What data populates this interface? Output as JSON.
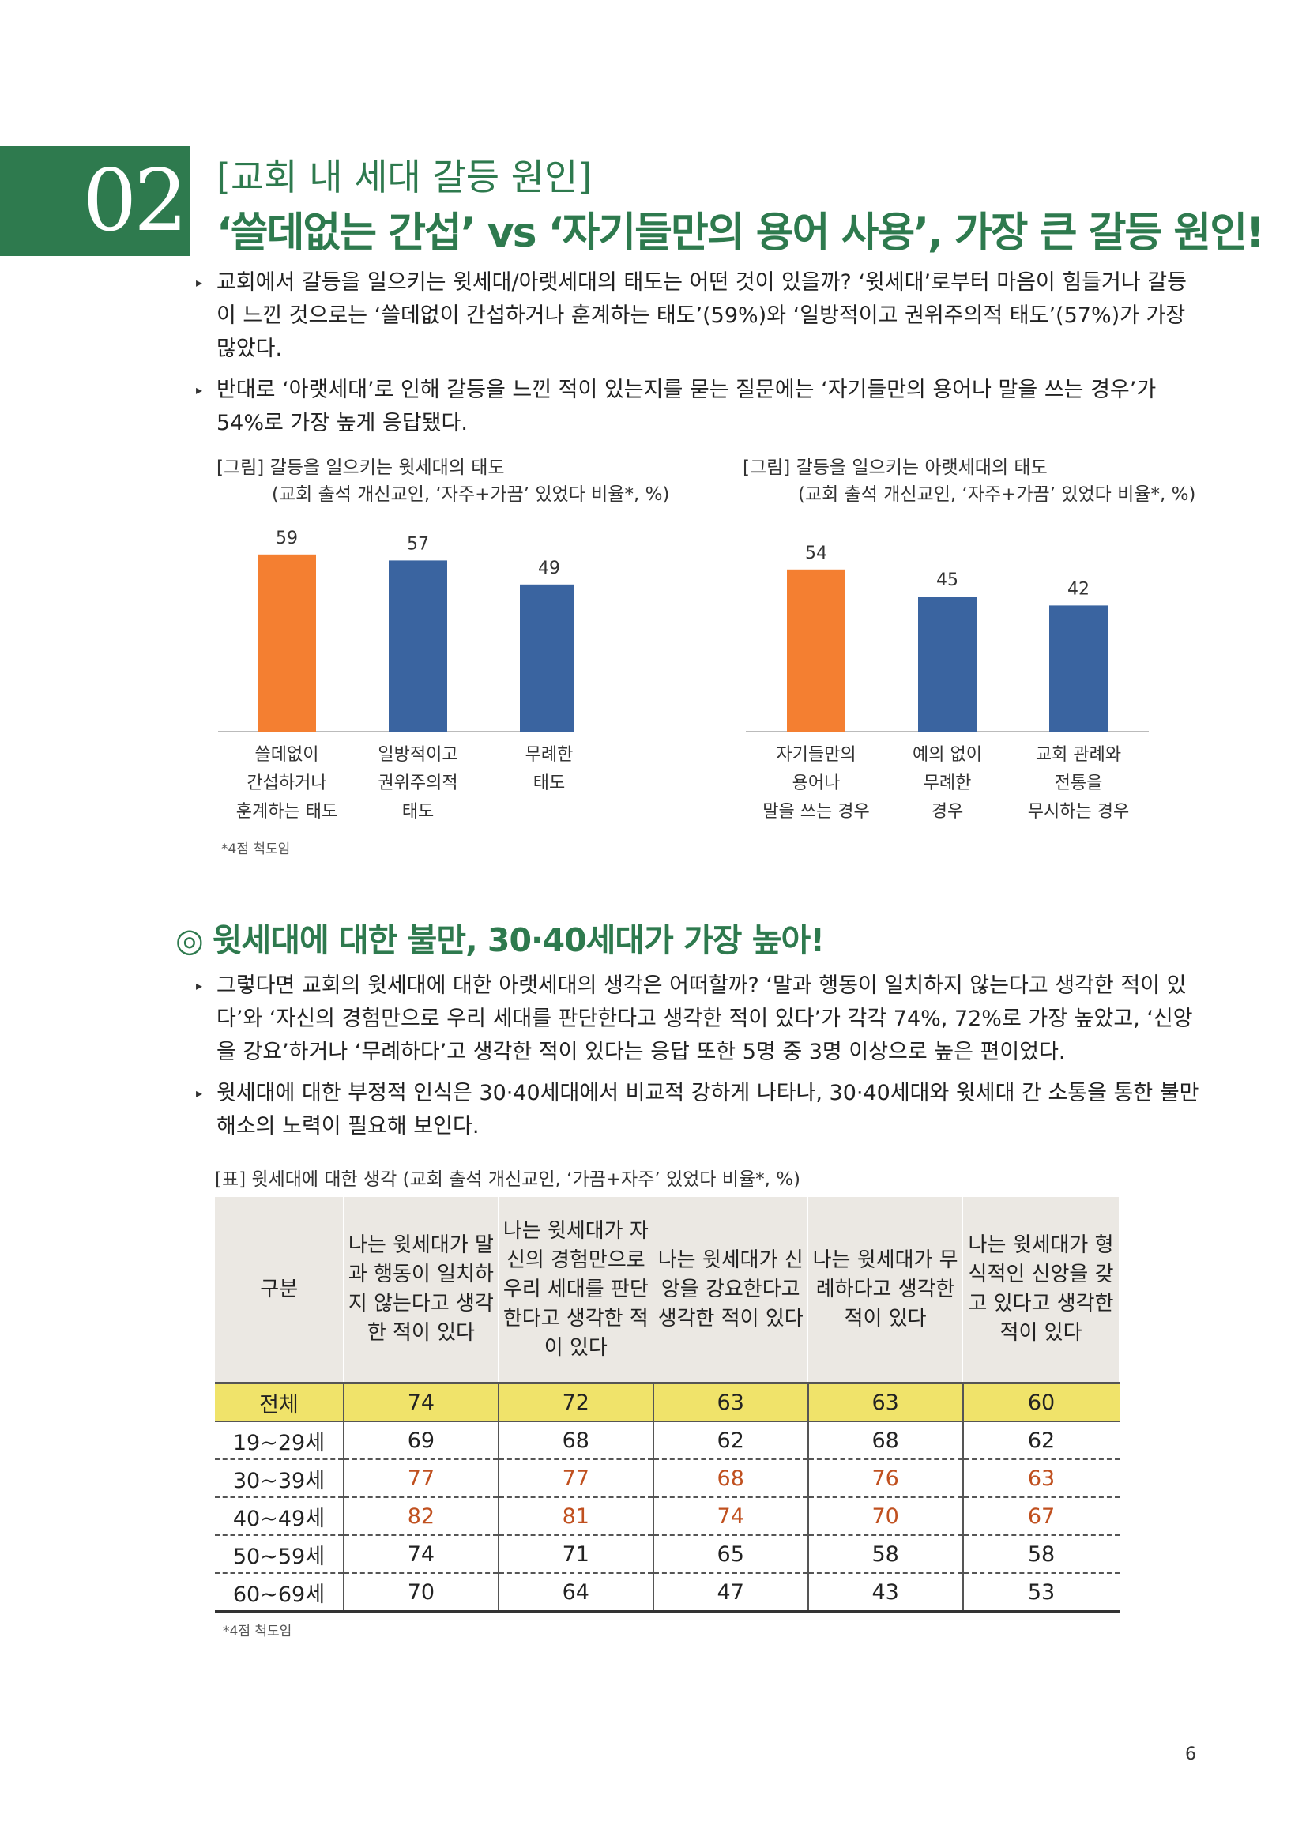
{
  "header": {
    "number": "02",
    "subtitle": "[교회 내 세대 갈등 원인]",
    "title": "‘쓸데없는 간섭’ vs ‘자기들만의 용어 사용’, 가장 큰 갈등 원인!"
  },
  "section1": {
    "bullets": [
      "교회에서 갈등을 일으키는 윗세대/아랫세대의 태도는 어떤 것이 있을까? ‘윗세대’로부터 마음이 힘들거나 갈등이 느낀 것으로는 ‘쓸데없이 간섭하거나 훈계하는 태도’(59%)와 ‘일방적이고 권위주의적 태도’(57%)가 가장 많았다.",
      "반대로 ‘아랫세대’로 인해 갈등을 느낀 적이 있는지를 묻는 질문에는 ‘자기들만의 용어나 말을 쓰는 경우’가 54%로 가장 높게 응답됐다."
    ]
  },
  "chart_left": {
    "title1": "[그림] 갈등을 일으키는 윗세대의 태도",
    "title2": "(교회 출석 개신교인, ‘자주+가끔’ 있었다 비율*, %)"
  },
  "chart_right": {
    "title1": "[그림] 갈등을 일으키는 아랫세대의 태도",
    "title2": "(교회 출석 개신교인, ‘자주+가끔’ 있었다 비율*, %)"
  },
  "chart_data": [
    {
      "type": "bar",
      "title": "[그림] 갈등을 일으키는 윗세대의 태도",
      "subtitle": "(교회 출석 개신교인, ‘자주+가끔’ 있었다 비율*, %)",
      "categories": [
        [
          "쓸데없이",
          "간섭하거나",
          "훈계하는 태도"
        ],
        [
          "일방적이고",
          "권위주의적",
          "태도"
        ],
        [
          "무례한",
          "태도"
        ]
      ],
      "values": [
        59,
        57,
        49
      ],
      "colors": [
        "#f47f31",
        "#3a64a0",
        "#3a64a0"
      ],
      "ylim": [
        0,
        70
      ]
    },
    {
      "type": "bar",
      "title": "[그림] 갈등을 일으키는 아랫세대의 태도",
      "subtitle": "(교회 출석 개신교인, ‘자주+가끔’ 있었다 비율*, %)",
      "categories": [
        [
          "자기들만의",
          "용어나",
          "말을 쓰는 경우"
        ],
        [
          "예의 없이",
          "무례한",
          "경우"
        ],
        [
          "교회 관례와",
          "전통을",
          "무시하는 경우"
        ]
      ],
      "values": [
        54,
        45,
        42
      ],
      "colors": [
        "#f47f31",
        "#3a64a0",
        "#3a64a0"
      ],
      "ylim": [
        0,
        70
      ]
    }
  ],
  "footnote1": "*4점 척도임",
  "section2": {
    "ring": "◎",
    "title": "윗세대에 대한 불만, 30·40세대가 가장 높아!",
    "bullets": [
      "그렇다면 교회의 윗세대에 대한 아랫세대의 생각은 어떠할까? ‘말과 행동이 일치하지 않는다고 생각한 적이 있다’와 ‘자신의 경험만으로 우리 세대를 판단한다고 생각한 적이 있다’가 각각 74%, 72%로 가장 높았고, ‘신앙을 강요’하거나 ‘무례하다’고 생각한 적이 있다는 응답 또한 5명 중 3명 이상으로 높은 편이었다.",
      "윗세대에 대한 부정적 인식은 30·40세대에서 비교적 강하게 나타나, 30·40세대와 윗세대 간 소통을 통한 불만 해소의 노력이 필요해 보인다."
    ]
  },
  "table": {
    "caption": "[표] 윗세대에 대한 생각 (교회 출석 개신교인, ‘가끔+자주’ 있었다 비율*, %)",
    "headers": [
      "구분",
      "나는 윗세대가 말과 행동이 일치하지 않는다고 생각한 적이 있다",
      "나는 윗세대가 자신의 경험만으로 우리 세대를 판단한다고 생각한 적이 있다",
      "나는 윗세대가 신앙을 강요한다고 생각한 적이 있다",
      "나는 윗세대가 무례하다고 생각한 적이 있다",
      "나는 윗세대가 형식적인 신앙을 갖고 있다고 생각한 적이 있다"
    ],
    "rows": [
      {
        "label": "전체",
        "values": [
          "74",
          "72",
          "63",
          "63",
          "60"
        ]
      },
      {
        "label": "19~29세",
        "values": [
          "69",
          "68",
          "62",
          "68",
          "62"
        ]
      },
      {
        "label": "30~39세",
        "values": [
          "77",
          "77",
          "68",
          "76",
          "63"
        ]
      },
      {
        "label": "40~49세",
        "values": [
          "82",
          "81",
          "74",
          "70",
          "67"
        ]
      },
      {
        "label": "50~59세",
        "values": [
          "74",
          "71",
          "65",
          "58",
          "58"
        ]
      },
      {
        "label": "60~69세",
        "values": [
          "70",
          "64",
          "47",
          "43",
          "53"
        ]
      }
    ],
    "highlight_color": "#c0501f",
    "total_row_color": "#f0e36a"
  },
  "footnote2": "*4점 척도임",
  "page_number": "6"
}
